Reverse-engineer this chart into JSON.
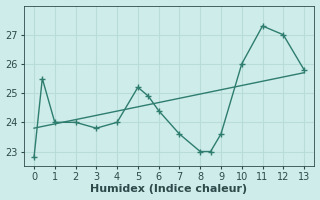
{
  "xlabel": "Humidex (Indice chaleur)",
  "bg_color": "#ceecea",
  "grid_color": "#b8ddd9",
  "line_color": "#2e7d6e",
  "main_x": [
    0,
    0.4,
    1,
    2,
    3,
    4,
    5,
    5.5,
    6,
    7,
    8,
    8.5,
    9,
    10,
    11,
    12,
    13
  ],
  "main_y": [
    22.8,
    25.5,
    24.0,
    24.0,
    23.8,
    24.0,
    25.2,
    24.9,
    24.4,
    23.6,
    23.0,
    23.0,
    23.6,
    26.0,
    27.3,
    27.0,
    25.8
  ],
  "trend_x": [
    0,
    13
  ],
  "trend_y": [
    23.8,
    25.7
  ],
  "xlim": [
    -0.5,
    13.5
  ],
  "ylim": [
    22.5,
    28.0
  ],
  "yticks": [
    23,
    24,
    25,
    26,
    27
  ],
  "xticks": [
    0,
    1,
    2,
    3,
    4,
    5,
    6,
    7,
    8,
    9,
    10,
    11,
    12,
    13
  ],
  "marker": "+",
  "markersize": 5,
  "linewidth": 1.0,
  "tick_fontsize": 7,
  "label_fontsize": 8
}
